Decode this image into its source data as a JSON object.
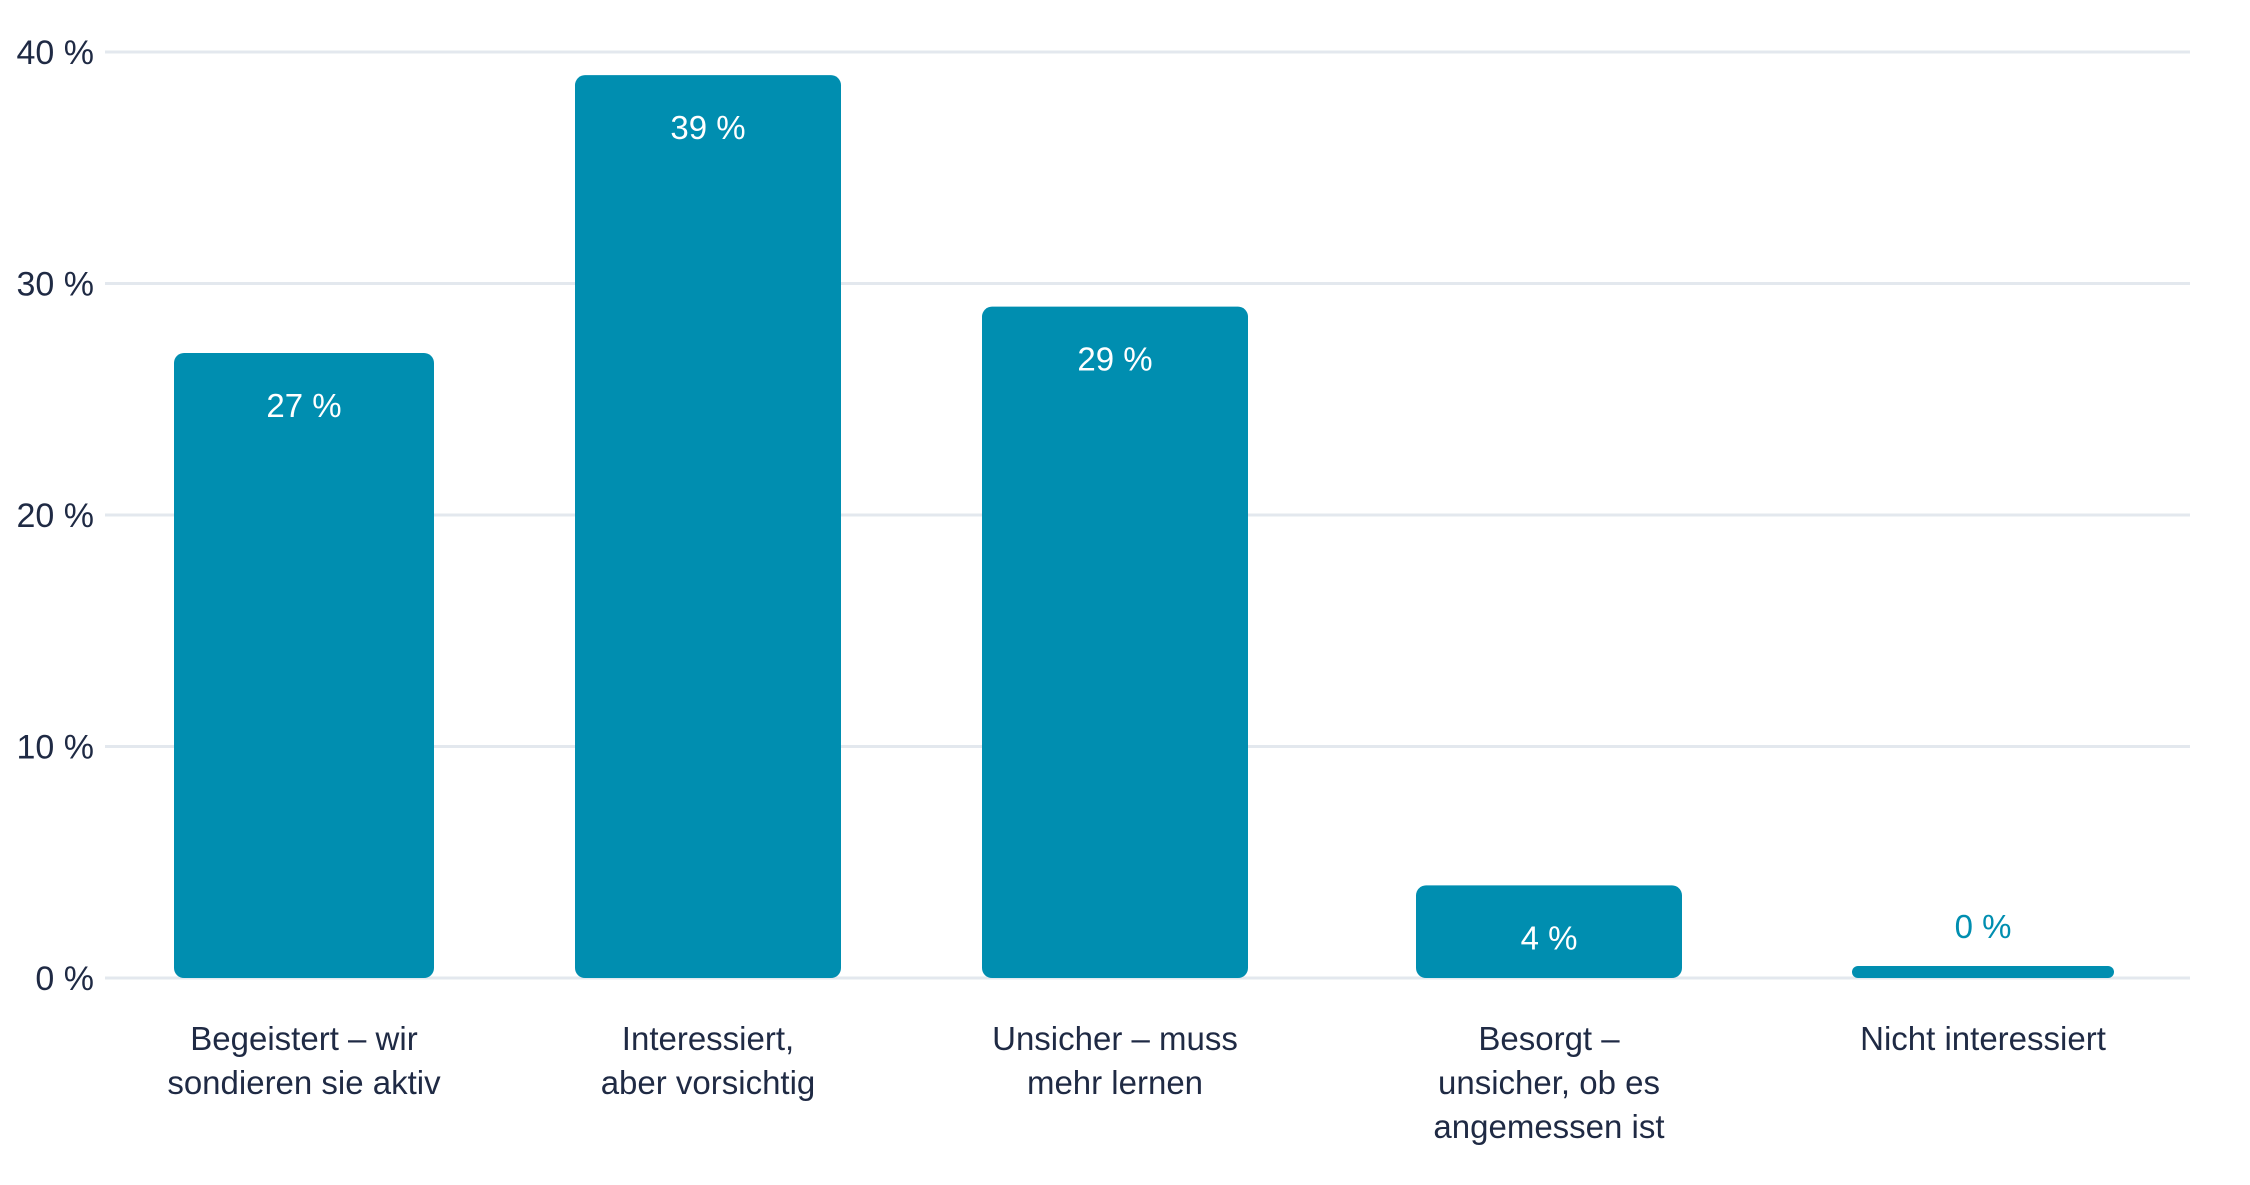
{
  "chart_data": {
    "type": "bar",
    "title": "",
    "xlabel": "",
    "ylabel": "",
    "ylim": [
      0,
      40
    ],
    "yticks": [
      0,
      10,
      20,
      30,
      40
    ],
    "ytick_labels": [
      "0 %",
      "10 %",
      "20 %",
      "30 %",
      "40 %"
    ],
    "grid": true,
    "categories": [
      [
        "Begeistert – wir",
        "sondieren sie aktiv"
      ],
      [
        "Interessiert,",
        "aber vorsichtig"
      ],
      [
        "Unsicher – muss",
        "mehr lernen"
      ],
      [
        "Besorgt –",
        "unsicher, ob es",
        "angemessen ist"
      ],
      [
        "Nicht interessiert"
      ]
    ],
    "values": [
      27,
      39,
      29,
      4,
      0
    ],
    "data_labels": [
      "27 %",
      "39 %",
      "29 %",
      "4 %",
      "0 %"
    ],
    "colors": {
      "bar": "#008eb0",
      "label_inside": "#ffffff",
      "label_outside": "#008eb0",
      "grid": "#e3e8ee",
      "text": "#1f2a44"
    }
  }
}
